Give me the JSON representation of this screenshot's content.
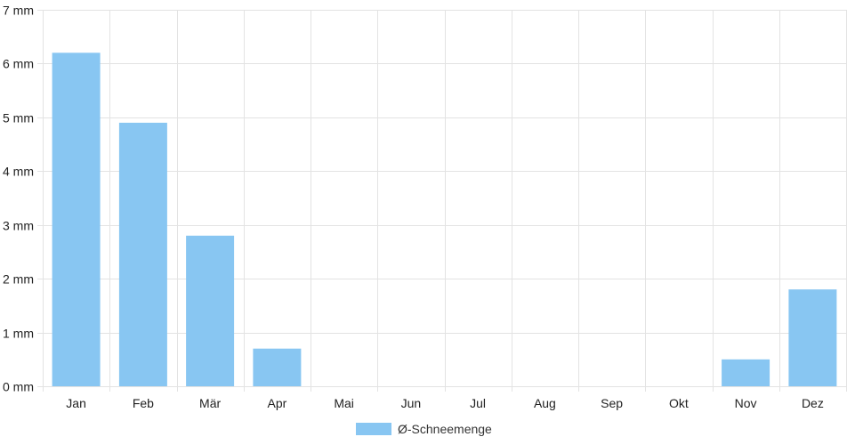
{
  "chart_data": {
    "type": "bar",
    "categories": [
      "Jan",
      "Feb",
      "Mär",
      "Apr",
      "Mai",
      "Jun",
      "Jul",
      "Aug",
      "Sep",
      "Okt",
      "Nov",
      "Dez"
    ],
    "series": [
      {
        "name": "Ø-Schneemenge",
        "values": [
          6.2,
          4.9,
          2.8,
          0.7,
          0,
          0,
          0,
          0,
          0,
          0,
          0.5,
          1.8
        ]
      }
    ],
    "y_unit": "mm",
    "ylim": [
      0,
      7
    ],
    "y_ticks": [
      0,
      1,
      2,
      3,
      4,
      5,
      6,
      7
    ],
    "y_tick_labels": [
      "0 mm",
      "1 mm",
      "2 mm",
      "3 mm",
      "4 mm",
      "5 mm",
      "6 mm",
      "7 mm"
    ],
    "grid": true,
    "legend_position": "bottom-center",
    "colors": {
      "bar": "#88c6f2",
      "grid": "#e3e3e3"
    }
  }
}
